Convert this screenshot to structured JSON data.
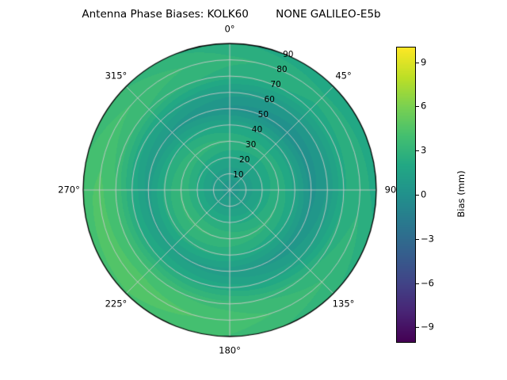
{
  "chart_data": {
    "type": "heatmap",
    "projection": "polar",
    "title": "Antenna Phase Biases: KOLK60        NONE GALILEO-E5b",
    "theta_ticks_deg": [
      0,
      45,
      90,
      135,
      180,
      225,
      270,
      315
    ],
    "theta_tick_labels": [
      "0°",
      "45°",
      "90",
      "135°",
      "180°",
      "225°",
      "270°",
      "315°"
    ],
    "radial_ticks_deg": [
      10,
      20,
      30,
      40,
      50,
      60,
      70,
      80,
      90
    ],
    "radial_tick_labels": [
      "10",
      "20",
      "30",
      "40",
      "50",
      "60",
      "70",
      "80",
      "90"
    ],
    "radial_label_angle_deg": 22.5,
    "rmax_deg": 90,
    "value_range_mm": [
      -10,
      10
    ],
    "contour_step_mm": 0.5,
    "azimuths_deg": [
      0,
      45,
      90,
      135,
      180,
      225,
      270,
      315
    ],
    "radii_deg": [
      0,
      10,
      20,
      30,
      40,
      50,
      60,
      70,
      80,
      90
    ],
    "values_mm": [
      [
        0.5,
        0.9,
        1.8,
        2.8,
        1.7,
        0.1,
        1.0,
        2.5,
        2.9,
        2.3
      ],
      [
        0.5,
        0.9,
        1.7,
        2.6,
        1.5,
        -0.2,
        0.7,
        2.1,
        2.4,
        1.8
      ],
      [
        0.5,
        0.9,
        1.8,
        2.7,
        1.6,
        0.0,
        0.8,
        2.2,
        2.6,
        2.0
      ],
      [
        0.5,
        1.0,
        2.0,
        2.9,
        1.9,
        0.4,
        1.4,
        2.8,
        3.3,
        2.8
      ],
      [
        0.5,
        1.1,
        2.2,
        3.2,
        2.3,
        0.9,
        2.0,
        3.5,
        4.1,
        3.7
      ],
      [
        0.5,
        1.1,
        2.3,
        3.4,
        2.5,
        1.2,
        2.3,
        3.9,
        4.6,
        4.2
      ],
      [
        0.5,
        1.1,
        2.2,
        3.3,
        2.4,
        1.0,
        2.2,
        3.8,
        4.4,
        4.0
      ],
      [
        0.5,
        1.0,
        2.0,
        3.1,
        2.1,
        0.6,
        1.7,
        3.2,
        3.7,
        3.2
      ]
    ],
    "grid": {
      "color": "#c8c8c8",
      "spoke_step_deg": 45,
      "ring_step_deg": 10,
      "outline_color": "#000000"
    },
    "colorbar": {
      "label": "Bias (mm)",
      "tick_values": [
        9,
        6,
        3,
        0,
        -3,
        -6,
        -9
      ],
      "tick_labels": [
        "9",
        "6",
        "3",
        "0",
        "−3",
        "−6",
        "−9"
      ],
      "colormap": "viridis",
      "colormap_anchors": [
        "#440154",
        "#482475",
        "#414487",
        "#355f8d",
        "#2a788e",
        "#21918c",
        "#22a884",
        "#44bf70",
        "#7ad151",
        "#bddf26",
        "#fde725"
      ]
    }
  }
}
